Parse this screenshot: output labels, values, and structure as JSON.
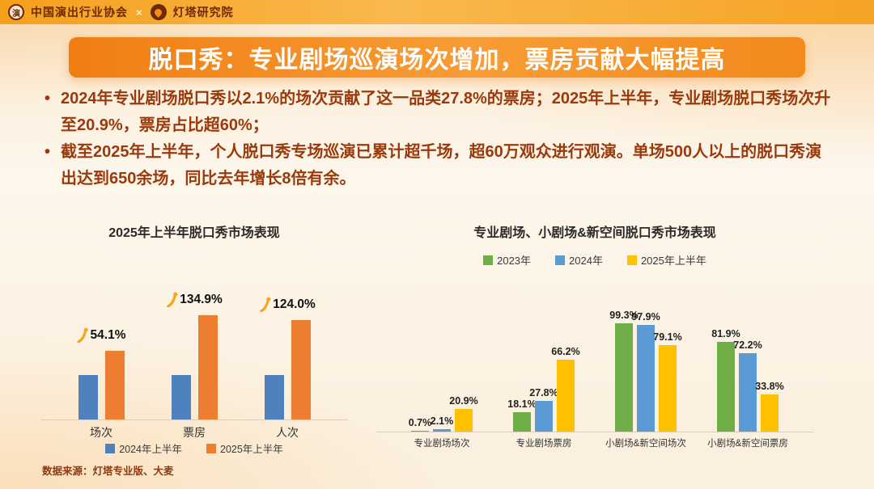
{
  "header": {
    "association": "中国演出行业协会",
    "separator": "×",
    "institute": "灯塔研究院"
  },
  "title": "脱口秀：专业剧场巡演场次增加，票房贡献大幅提高",
  "bullets": [
    "2024年专业剧场脱口秀以2.1%的场次贡献了这一品类27.8%的票房；2025年上半年，专业剧场脱口秀场次升至20.9%，票房占比超60%；",
    "截至2025年上半年，个人脱口秀专场巡演已累计超千场，超60万观众进行观演。单场500人以上的脱口秀演出达到650余场，同比去年增长8倍有余。"
  ],
  "source": "数据来源：灯塔专业版、大麦",
  "colors": {
    "banner_orange": "#F28A1C",
    "dark_red_text": "#9A3A0C",
    "blue": "#4E81BD",
    "orange": "#ED7D31",
    "green": "#6FAE46",
    "yellow": "#FFC000",
    "growth_icon": "#F5A61D"
  },
  "chart_data": [
    {
      "type": "bar",
      "title": "2025年上半年脱口秀市场表现",
      "categories": [
        "场次",
        "票房",
        "人次"
      ],
      "series": [
        {
          "name": "2024年上半年",
          "color": "#4E81BD",
          "values": [
            100,
            100,
            100
          ]
        },
        {
          "name": "2025年上半年",
          "color": "#ED7D31",
          "values": [
            154.1,
            234.9,
            224.0
          ]
        }
      ],
      "growth_labels": [
        "54.1%",
        "134.9%",
        "124.0%"
      ],
      "values_note": "relative index, 2024H1 = 100; growth labels show YoY increase",
      "legend_position": "bottom",
      "grid": false
    },
    {
      "type": "bar",
      "title": "专业剧场、小剧场&新空间脱口秀市场表现",
      "categories": [
        "专业剧场场次",
        "专业剧场票房",
        "小剧场&新空间场次",
        "小剧场&新空间票房"
      ],
      "series": [
        {
          "name": "2023年",
          "color": "#6FAE46",
          "values": [
            0.7,
            18.1,
            99.3,
            81.9
          ]
        },
        {
          "name": "2024年",
          "color": "#5B9BD5",
          "values": [
            2.1,
            27.8,
            97.9,
            72.2
          ]
        },
        {
          "name": "2025年上半年",
          "color": "#FFC000",
          "values": [
            20.9,
            66.2,
            79.1,
            33.8
          ]
        }
      ],
      "unit": "%",
      "show_value_labels": true,
      "ylim": [
        0,
        110
      ],
      "legend_position": "top",
      "grid": false
    }
  ]
}
